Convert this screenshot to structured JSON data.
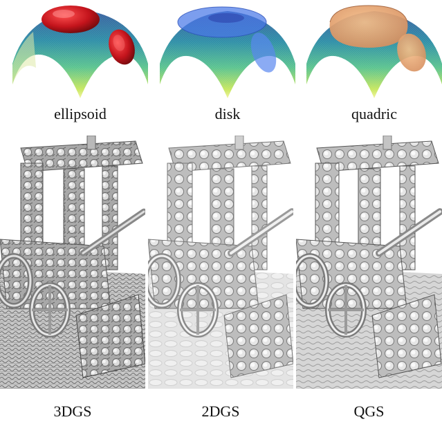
{
  "top_row": {
    "labels": [
      "ellipsoid",
      "disk",
      "quadric"
    ],
    "colors": {
      "surface_top": "#3b5fa0",
      "surface_mid": "#2aa8a0",
      "surface_low": "#9fdc5a",
      "surface_edge": "#e8f070",
      "ellipsoid": "#c0141c",
      "disk": "#4a78e8",
      "quadric": "#e8a070"
    }
  },
  "bottom_row": {
    "labels": [
      "3DGS",
      "2DGS",
      "QGS"
    ]
  }
}
